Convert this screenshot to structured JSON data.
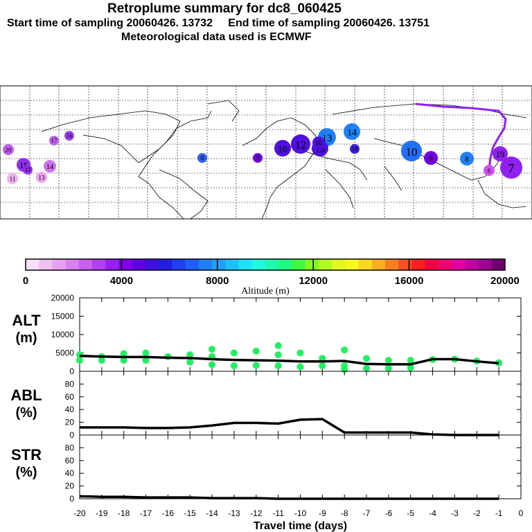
{
  "header": {
    "title": "Retroplume summary for dc8_060425",
    "sampling_line": "Start time of sampling 20060426. 13732     End time of sampling 20060426. 13751",
    "met_line": "Meteorological data used is ECMWF"
  },
  "colorbar": {
    "ticks": [
      "0",
      "4000",
      "8000",
      "12000",
      "16000",
      "20000"
    ],
    "label": "Altitude (m)",
    "colors": [
      "#f8e0f8",
      "#f0c0f0",
      "#e8a0f0",
      "#d880f0",
      "#c860f0",
      "#b040f0",
      "#9820f0",
      "#8000e8",
      "#6000e0",
      "#4010e0",
      "#2020e0",
      "#2040f0",
      "#2060f8",
      "#2080f8",
      "#20a0f8",
      "#20c0f8",
      "#20e0f8",
      "#20f8e0",
      "#20f8b0",
      "#20f880",
      "#40f840",
      "#80f820",
      "#b0f820",
      "#e0f820",
      "#f8f820",
      "#f8d820",
      "#f8b020",
      "#f88020",
      "#f85020",
      "#f82020",
      "#f80040",
      "#f00070",
      "#e000a0",
      "#c000a0",
      "#a00090",
      "#700070"
    ]
  },
  "map": {
    "labels": [
      "20",
      "15",
      "11",
      "13",
      "14",
      "17",
      "16",
      "8",
      "9",
      "10",
      "12",
      "13",
      "14",
      "15",
      "16",
      "18",
      "19",
      "10",
      "9",
      "8",
      "7",
      "6",
      "11"
    ]
  },
  "chart_data": [
    {
      "type": "line",
      "name": "ALT",
      "ylabel_lines": [
        "ALT",
        "(m)"
      ],
      "ylim": [
        0,
        20000
      ],
      "yticks": [
        "0",
        "5000",
        "10000",
        "15000",
        "20000"
      ],
      "x": [
        -20,
        -19,
        -18,
        -17,
        -16,
        -15,
        -14,
        -13,
        -12,
        -11,
        -10,
        -9,
        -8,
        -7,
        -6,
        -5,
        -4,
        -3,
        -2,
        -1
      ],
      "values": [
        4200,
        4000,
        3900,
        3900,
        3700,
        3600,
        3300,
        3100,
        3000,
        2900,
        2700,
        2700,
        2800,
        2000,
        1900,
        1900,
        3300,
        3300,
        2700,
        2200
      ],
      "scatter": [
        {
          "x": -20,
          "y": 4500
        },
        {
          "x": -20,
          "y": 3000
        },
        {
          "x": -19,
          "y": 4000
        },
        {
          "x": -19,
          "y": 3000
        },
        {
          "x": -18,
          "y": 4800
        },
        {
          "x": -18,
          "y": 3000
        },
        {
          "x": -17,
          "y": 5000
        },
        {
          "x": -17,
          "y": 3000
        },
        {
          "x": -16,
          "y": 4000
        },
        {
          "x": -15,
          "y": 4500
        },
        {
          "x": -15,
          "y": 2500
        },
        {
          "x": -14,
          "y": 6000
        },
        {
          "x": -14,
          "y": 4000
        },
        {
          "x": -14,
          "y": 1800
        },
        {
          "x": -13,
          "y": 5000
        },
        {
          "x": -13,
          "y": 1500
        },
        {
          "x": -12,
          "y": 5500
        },
        {
          "x": -12,
          "y": 1600
        },
        {
          "x": -11,
          "y": 7000
        },
        {
          "x": -11,
          "y": 4500
        },
        {
          "x": -11,
          "y": 1500
        },
        {
          "x": -10,
          "y": 5000
        },
        {
          "x": -10,
          "y": 1200
        },
        {
          "x": -9,
          "y": 3500
        },
        {
          "x": -9,
          "y": 1500
        },
        {
          "x": -8,
          "y": 5800
        },
        {
          "x": -8,
          "y": 1500
        },
        {
          "x": -8,
          "y": 500
        },
        {
          "x": -7,
          "y": 3500
        },
        {
          "x": -7,
          "y": 800
        },
        {
          "x": -6,
          "y": 3000
        },
        {
          "x": -6,
          "y": 800
        },
        {
          "x": -5,
          "y": 3000
        },
        {
          "x": -5,
          "y": 1000
        },
        {
          "x": -4,
          "y": 3200
        },
        {
          "x": -3,
          "y": 3300
        },
        {
          "x": -2,
          "y": 2800
        },
        {
          "x": -1,
          "y": 2300
        }
      ]
    },
    {
      "type": "line",
      "name": "ABL",
      "ylabel_lines": [
        "ABL",
        "(%)"
      ],
      "ylim": [
        0,
        100
      ],
      "yticks": [
        "0",
        "20",
        "40",
        "60",
        "80"
      ],
      "x": [
        -20,
        -19,
        -18,
        -17,
        -16,
        -15,
        -14,
        -13,
        -12,
        -11,
        -10,
        -9,
        -8,
        -7,
        -6,
        -5,
        -4,
        -3,
        -2,
        -1
      ],
      "values": [
        12,
        12,
        12,
        11,
        11,
        12,
        15,
        19,
        19,
        18,
        24,
        25,
        4,
        4,
        4,
        4,
        1,
        0,
        0,
        0
      ]
    },
    {
      "type": "line",
      "name": "STR",
      "ylabel_lines": [
        "STR",
        "(%)"
      ],
      "ylim": [
        0,
        100
      ],
      "yticks": [
        "0",
        "20",
        "40",
        "60",
        "80"
      ],
      "x": [
        -20,
        -19,
        -18,
        -17,
        -16,
        -15,
        -14,
        -13,
        -12,
        -11,
        -10,
        -9,
        -8,
        -7,
        -6,
        -5,
        -4,
        -3,
        -2,
        -1
      ],
      "values": [
        4,
        3,
        3,
        2,
        2,
        2,
        1,
        1,
        1,
        0,
        0,
        0,
        0,
        0,
        0,
        0,
        0,
        0,
        0,
        0
      ]
    }
  ],
  "xaxis": {
    "ticks": [
      "-20",
      "-19",
      "-18",
      "-17",
      "-16",
      "-15",
      "-14",
      "-13",
      "-12",
      "-11",
      "-10",
      "-9",
      "-8",
      "-7",
      "-6",
      "-5",
      "-4",
      "-3",
      "-2",
      "-1",
      "0"
    ],
    "label": "Travel time (days)"
  },
  "styles": {
    "scatter_color": "#20f060",
    "line_color": "#000000"
  }
}
